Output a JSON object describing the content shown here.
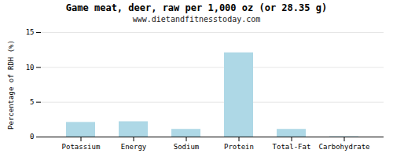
{
  "chart_data": {
    "type": "bar",
    "title": "Game meat, deer, raw per 1,000 oz (or 28.35 g)",
    "subtitle": "www.dietandfitnesstoday.com",
    "categories": [
      "Potassium",
      "Energy",
      "Sodium",
      "Protein",
      "Total-Fat",
      "Carbohydrate"
    ],
    "values": [
      2.1,
      2.2,
      1.1,
      12.1,
      1.1,
      0.05
    ],
    "color": "#aed8e6",
    "ylabel": "Percentage of RDH (%)",
    "ylim": [
      0,
      15
    ],
    "yticks": [
      0,
      5,
      10,
      15
    ],
    "grid": true
  }
}
